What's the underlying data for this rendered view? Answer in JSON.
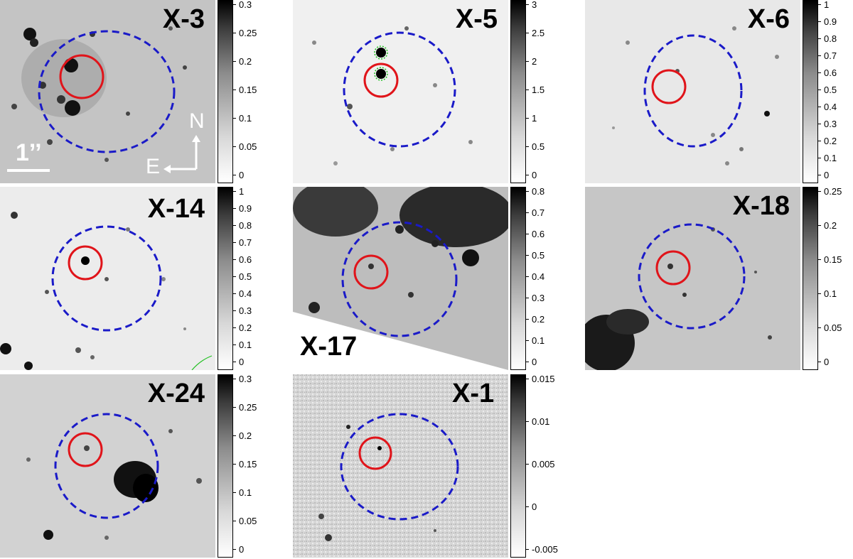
{
  "panels": [
    {
      "id": "X-3",
      "label": "X-3",
      "ticks": [
        "0.3",
        "0.25",
        "0.2",
        "0.15",
        "0.1",
        "0.05",
        "0"
      ]
    },
    {
      "id": "X-5",
      "label": "X-5",
      "ticks": [
        "3",
        "2.5",
        "2",
        "1.5",
        "1",
        "0.5",
        "0"
      ]
    },
    {
      "id": "X-6",
      "label": "X-6",
      "ticks": [
        "1",
        "0.9",
        "0.8",
        "0.7",
        "0.6",
        "0.5",
        "0.4",
        "0.3",
        "0.2",
        "0.1",
        "0"
      ]
    },
    {
      "id": "X-14",
      "label": "X-14",
      "ticks": [
        "1",
        "0.9",
        "0.8",
        "0.7",
        "0.6",
        "0.5",
        "0.4",
        "0.3",
        "0.2",
        "0.1",
        "0"
      ]
    },
    {
      "id": "X-17",
      "label": "X-17",
      "ticks": [
        "0.8",
        "0.7",
        "0.6",
        "0.5",
        "0.4",
        "0.3",
        "0.2",
        "0.1",
        "0"
      ]
    },
    {
      "id": "X-18",
      "label": "X-18",
      "ticks": [
        "0.25",
        "0.2",
        "0.15",
        "0.1",
        "0.05",
        "0"
      ]
    },
    {
      "id": "X-24",
      "label": "X-24",
      "ticks": [
        "0.3",
        "0.25",
        "0.2",
        "0.15",
        "0.1",
        "0.05",
        "0"
      ]
    },
    {
      "id": "X-1",
      "label": "X-1",
      "ticks": [
        "0.015",
        "0.01",
        "0.005",
        "0",
        "-0.005"
      ]
    }
  ],
  "scale_bar": {
    "label": "1’’"
  },
  "compass": {
    "north": "N",
    "east": "E"
  },
  "colors": {
    "source_circle": "#e0141a",
    "error_ellipse": "#1a1ac8",
    "counterpart_mark": "#20c020",
    "colormap": "gray_r"
  }
}
